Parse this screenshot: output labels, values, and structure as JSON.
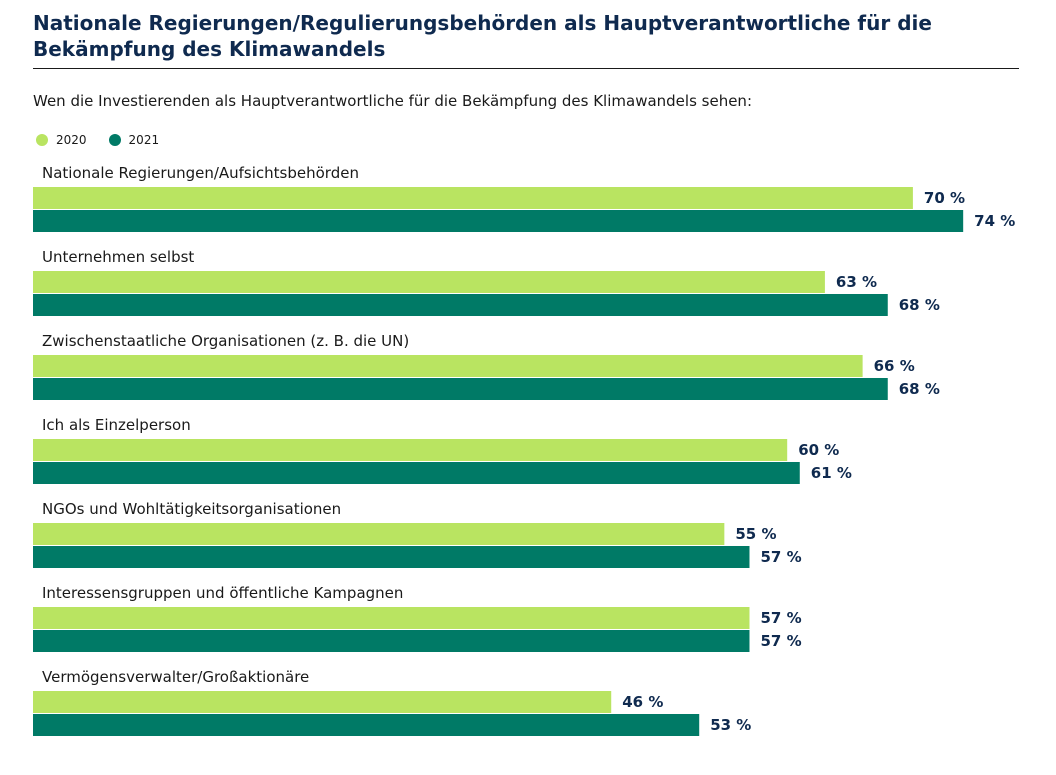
{
  "chart_data": {
    "type": "bar",
    "orientation": "horizontal",
    "title": "Nationale Regierungen/Regulierungsbehörden als Hauptverantwortliche für die Bekämpfung des Klimawandels",
    "subtitle": "Wen die Investierenden als Hauptverantwortliche für die Bekämpfung des Klimawandels sehen:",
    "categories": [
      "Nationale Regierungen/Aufsichtsbehörden",
      "Unternehmen selbst",
      "Zwischenstaatliche Organisationen (z. B. die UN)",
      "Ich als Einzelperson",
      "NGOs und Wohltätigkeitsorganisationen",
      "Interessensgruppen und öffentliche Kampagnen",
      "Vermögensverwalter/Großaktionäre"
    ],
    "series": [
      {
        "name": "2020",
        "color": "#b9e461",
        "values": [
          70,
          63,
          66,
          60,
          55,
          57,
          46
        ]
      },
      {
        "name": "2021",
        "color": "#007a66",
        "values": [
          74,
          68,
          68,
          61,
          57,
          57,
          53
        ]
      }
    ],
    "value_suffix": " %",
    "xlim": [
      0,
      100
    ],
    "grid": false,
    "legend_position": "top-left"
  }
}
